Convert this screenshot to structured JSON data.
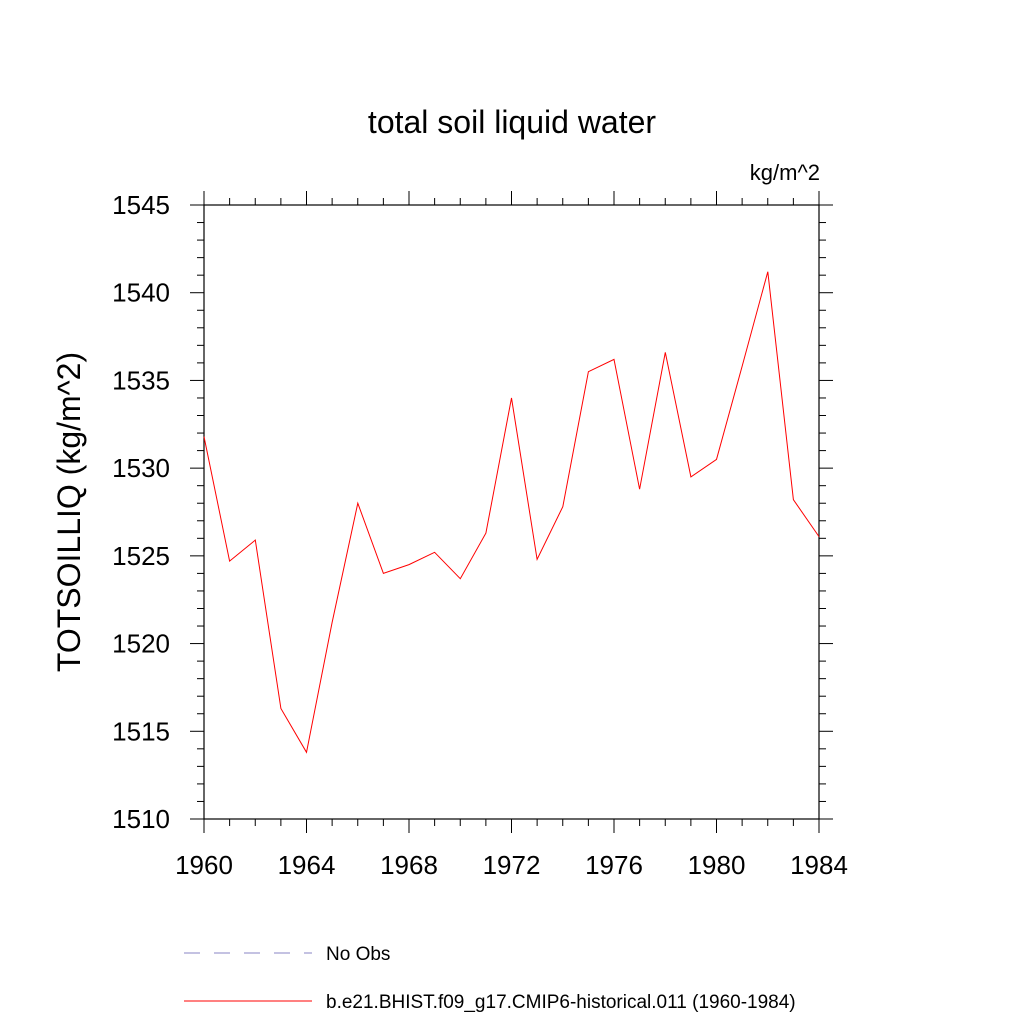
{
  "chart_data": {
    "type": "line",
    "title": "total soil liquid water",
    "units": "kg/m^2",
    "ylabel": "TOTSOILLIQ  (kg/m^2)",
    "xlabel": "",
    "xlim": [
      1960,
      1984
    ],
    "ylim": [
      1510,
      1545
    ],
    "xticks": [
      "1960",
      "1964",
      "1968",
      "1972",
      "1976",
      "1980",
      "1984"
    ],
    "yticks": [
      "1510",
      "1515",
      "1520",
      "1525",
      "1530",
      "1535",
      "1540",
      "1545"
    ],
    "grid": false,
    "legend_placement": "bottom",
    "series": [
      {
        "name": "No Obs",
        "color": "#8a86c6",
        "style": "dashed",
        "x": [],
        "y": []
      },
      {
        "name": "b.e21.BHIST.f09_g17.CMIP6-historical.011 (1960-1984)",
        "color": "#ff0000",
        "style": "solid",
        "x": [
          1960,
          1961,
          1962,
          1963,
          1964,
          1965,
          1966,
          1967,
          1968,
          1969,
          1970,
          1971,
          1972,
          1973,
          1974,
          1975,
          1976,
          1977,
          1978,
          1979,
          1980,
          1981,
          1982,
          1983,
          1984
        ],
        "y": [
          1531.8,
          1524.7,
          1525.9,
          1516.3,
          1513.8,
          1521.2,
          1528.0,
          1524.0,
          1524.5,
          1525.2,
          1523.7,
          1526.3,
          1534.0,
          1524.8,
          1527.8,
          1535.5,
          1536.2,
          1528.8,
          1536.6,
          1529.5,
          1530.5,
          1535.8,
          1541.2,
          1528.2,
          1526.1
        ]
      }
    ]
  }
}
